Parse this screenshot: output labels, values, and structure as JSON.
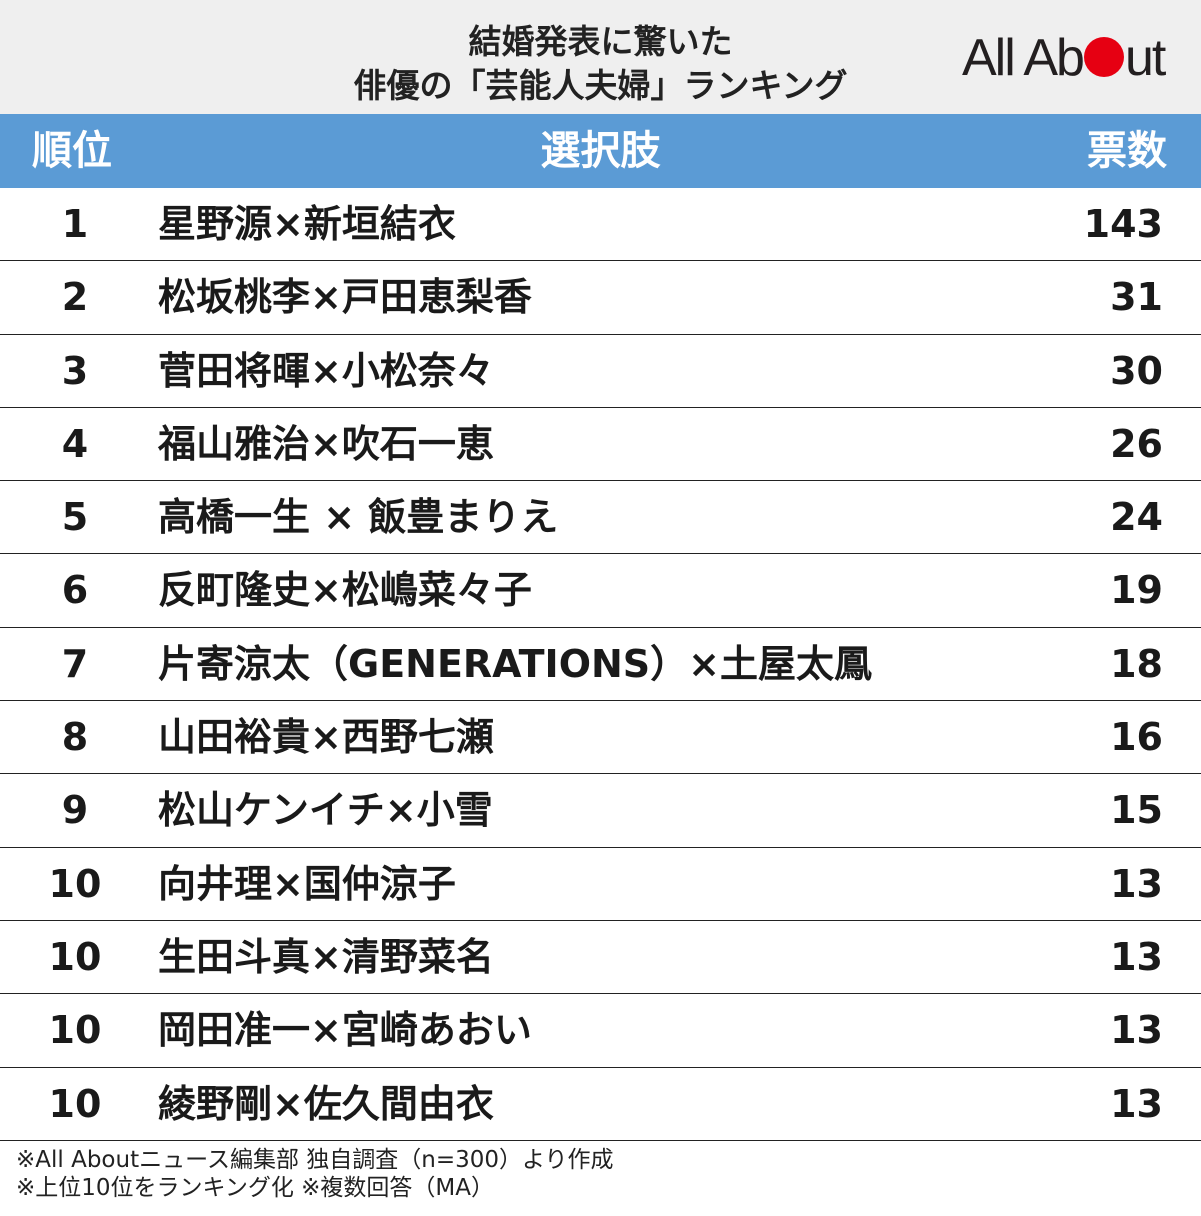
{
  "header": {
    "title_line1": "結婚発表に驚いた",
    "title_line2": "俳優の「芸能人夫婦」ランキング",
    "logo_part1": "All Ab",
    "logo_part2": "ut",
    "logo_accent": "#e60012"
  },
  "table": {
    "col_rank": "順位",
    "col_choice": "選択肢",
    "col_votes": "票数",
    "header_color": "#5b9bd5"
  },
  "chart_data": {
    "type": "table",
    "title": "結婚発表に驚いた俳優の「芸能人夫婦」ランキング",
    "columns": [
      "順位",
      "選択肢",
      "票数"
    ],
    "rows": [
      {
        "rank": "1",
        "name": "星野源×新垣結衣",
        "votes": 143
      },
      {
        "rank": "2",
        "name": "松坂桃李×戸田恵梨香",
        "votes": 31
      },
      {
        "rank": "3",
        "name": "菅田将暉×小松奈々",
        "votes": 30
      },
      {
        "rank": "4",
        "name": "福山雅治×吹石一恵",
        "votes": 26
      },
      {
        "rank": "5",
        "name": "高橋一生 × 飯豊まりえ",
        "votes": 24
      },
      {
        "rank": "6",
        "name": "反町隆史×松嶋菜々子",
        "votes": 19
      },
      {
        "rank": "7",
        "name": "片寄涼太（GENERATIONS）×土屋太鳳",
        "votes": 18
      },
      {
        "rank": "8",
        "name": "山田裕貴×西野七瀬",
        "votes": 16
      },
      {
        "rank": "9",
        "name": "松山ケンイチ×小雪",
        "votes": 15
      },
      {
        "rank": "10",
        "name": "向井理×国仲涼子",
        "votes": 13
      },
      {
        "rank": "10",
        "name": "生田斗真×清野菜名",
        "votes": 13
      },
      {
        "rank": "10",
        "name": "岡田准一×宮崎あおい",
        "votes": 13
      },
      {
        "rank": "10",
        "name": "綾野剛×佐久間由衣",
        "votes": 13
      }
    ]
  },
  "footer": {
    "note1": "※All Aboutニュース編集部 独自調査（n=300）より作成",
    "note2": "※上位10位をランキング化 ※複数回答（MA）"
  }
}
